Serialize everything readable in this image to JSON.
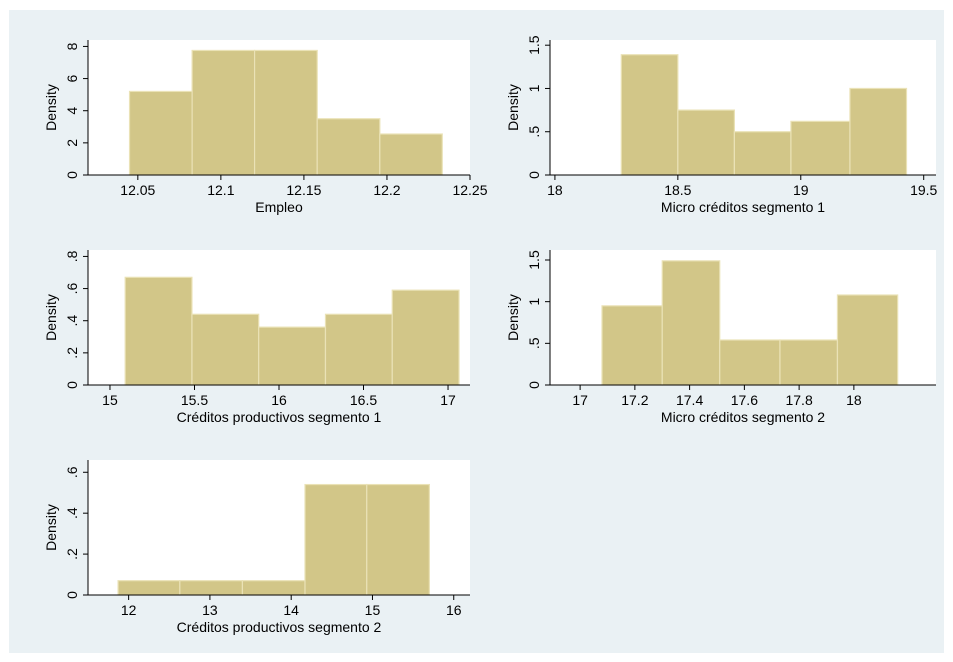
{
  "style": {
    "page_background": "#ffffff",
    "figure_background": "#eaf1f4",
    "plot_background": "#ffffff",
    "bar_fill": "#d2c688",
    "bar_edge": "#eae2b6",
    "axis_color": "#000000"
  },
  "chart_data": [
    {
      "type": "bar",
      "xlabel": "Empleo",
      "ylabel": "Density",
      "bin_edges": [
        12.045,
        12.0827,
        12.1203,
        12.158,
        12.1957,
        12.2333
      ],
      "values": [
        5.2,
        7.75,
        7.75,
        3.5,
        2.55
      ],
      "xlim": [
        12.02,
        12.25
      ],
      "ylim": [
        0,
        8.4
      ],
      "xticks": [
        12.05,
        12.1,
        12.15,
        12.2,
        12.25
      ],
      "xtick_labels": [
        "12.05",
        "12.1",
        "12.15",
        "12.2",
        "12.25"
      ],
      "yticks": [
        0,
        2,
        4,
        6,
        8
      ],
      "ytick_labels": [
        "0",
        "2",
        "4",
        "6",
        "8"
      ],
      "grid": false
    },
    {
      "type": "bar",
      "xlabel": "Micro créditos segmento 1",
      "ylabel": "Density",
      "bin_edges": [
        18.27,
        18.5,
        18.73,
        18.96,
        19.2,
        19.43
      ],
      "values": [
        1.39,
        0.75,
        0.5,
        0.62,
        1.0
      ],
      "xlim": [
        17.98,
        19.55
      ],
      "ylim": [
        0,
        1.56
      ],
      "xticks": [
        18,
        18.5,
        19,
        19.5
      ],
      "xtick_labels": [
        "18",
        "18.5",
        "19",
        "19.5"
      ],
      "yticks": [
        0,
        0.5,
        1,
        1.5
      ],
      "ytick_labels": [
        "0",
        ".5",
        "1",
        "1.5"
      ],
      "grid": false
    },
    {
      "type": "bar",
      "xlabel": "Créditos productivos segmento 1",
      "ylabel": "Density",
      "bin_edges": [
        15.09,
        15.485,
        15.88,
        16.275,
        16.67,
        17.065
      ],
      "values": [
        0.67,
        0.44,
        0.36,
        0.44,
        0.59
      ],
      "xlim": [
        14.87,
        17.13
      ],
      "ylim": [
        0,
        0.84
      ],
      "xticks": [
        15,
        15.5,
        16,
        16.5,
        17
      ],
      "xtick_labels": [
        "15",
        "15.5",
        "16",
        "16.5",
        "17"
      ],
      "yticks": [
        0,
        0.2,
        0.4,
        0.6,
        0.8
      ],
      "ytick_labels": [
        "0",
        ".2",
        ".4",
        ".6",
        ".8"
      ],
      "grid": false
    },
    {
      "type": "bar",
      "xlabel": "Micro créditos segmento 2",
      "ylabel": "Density",
      "bin_edges": [
        17.08,
        17.3,
        17.51,
        17.73,
        17.94,
        18.16
      ],
      "values": [
        0.95,
        1.49,
        0.54,
        0.54,
        1.08
      ],
      "xlim": [
        16.89,
        18.3
      ],
      "ylim": [
        0,
        1.62
      ],
      "xticks": [
        17,
        17.2,
        17.4,
        17.6,
        17.8,
        18
      ],
      "xtick_labels": [
        "17",
        "17.2",
        "17.4",
        "17.6",
        "17.8",
        "18"
      ],
      "yticks": [
        0,
        0.5,
        1,
        1.5
      ],
      "ytick_labels": [
        "0",
        ".5",
        "1",
        "1.5"
      ],
      "grid": false
    },
    {
      "type": "bar",
      "xlabel": "Créditos productivos segmento 2",
      "ylabel": "Density",
      "bin_edges": [
        11.87,
        12.63,
        13.4,
        14.17,
        14.93,
        15.7
      ],
      "values": [
        0.07,
        0.07,
        0.07,
        0.54,
        0.54
      ],
      "xlim": [
        11.5,
        16.2
      ],
      "ylim": [
        0,
        0.66
      ],
      "xticks": [
        12,
        13,
        14,
        15,
        16
      ],
      "xtick_labels": [
        "12",
        "13",
        "14",
        "15",
        "16"
      ],
      "yticks": [
        0,
        0.2,
        0.4,
        0.6
      ],
      "ytick_labels": [
        "0",
        ".2",
        ".4",
        ".6"
      ],
      "grid": false
    }
  ]
}
